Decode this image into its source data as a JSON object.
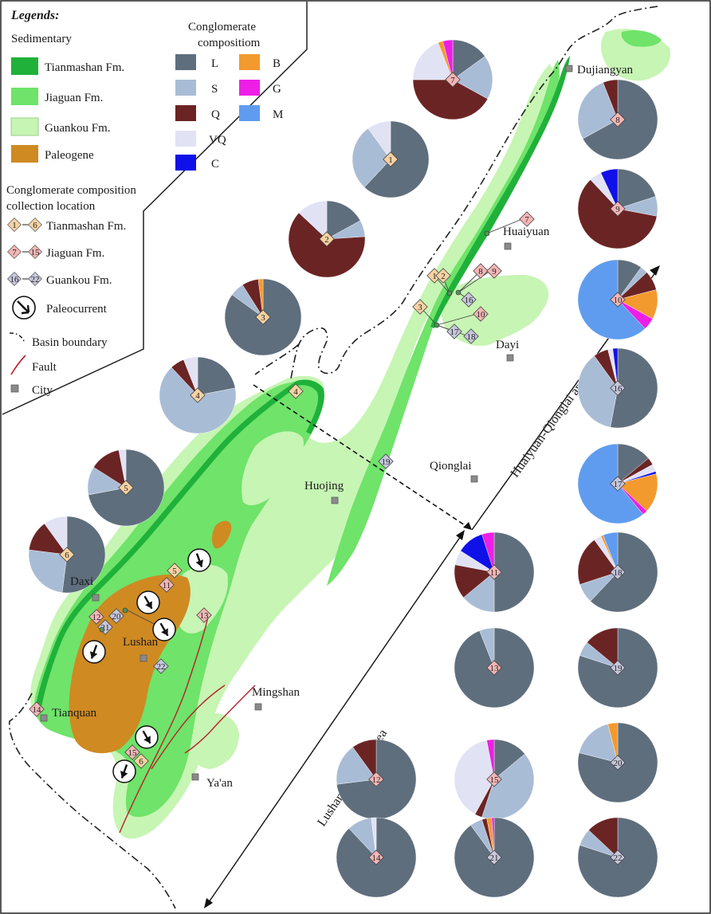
{
  "colors": {
    "tianmashan": "#1fb13a",
    "jiaguan": "#6fe36a",
    "guankou": "#c7f5b4",
    "paleogene": "#cf8a22",
    "L": "#5f6e7d",
    "S": "#a9bcd6",
    "Q": "#6b2424",
    "VQ": "#e2e2f5",
    "C": "#1010e8",
    "B": "#f39a2e",
    "G": "#ee1ee6",
    "M": "#5f9cf0",
    "diamond_tianmashan": "#f6d2a2",
    "diamond_jiaguan": "#f3b5b5",
    "diamond_guankou": "#c6c6dc",
    "fault": "#b8202a",
    "city": "#8a8a8a"
  },
  "legend": {
    "title": "Legends:",
    "sedimentary_title": "Sedimentary",
    "units": [
      {
        "key": "tianmashan",
        "label": "Tianmashan Fm."
      },
      {
        "key": "jiaguan",
        "label": "Jiaguan Fm."
      },
      {
        "key": "guankou",
        "label": "Guankou Fm."
      },
      {
        "key": "paleogene",
        "label": "Paleogene"
      }
    ],
    "composition_title": [
      "Conglomerate",
      "compositiom"
    ],
    "components": [
      {
        "key": "L",
        "label": "L"
      },
      {
        "key": "S",
        "label": "S"
      },
      {
        "key": "Q",
        "label": "Q"
      },
      {
        "key": "VQ",
        "label": "VQ"
      },
      {
        "key": "C",
        "label": "C"
      },
      {
        "key": "B",
        "label": "B"
      },
      {
        "key": "G",
        "label": "G"
      },
      {
        "key": "M",
        "label": "M"
      }
    ],
    "collection_title": [
      "Conglomerate composition",
      "collection location"
    ],
    "collection": [
      {
        "from": "1",
        "to": "6",
        "label": "Tianmashan Fm.",
        "fm": "tianmashan"
      },
      {
        "from": "7",
        "to": "15",
        "label": "Jiaguan Fm.",
        "fm": "jiaguan"
      },
      {
        "from": "16",
        "to": "22",
        "label": "Guankou Fm.",
        "fm": "guankou"
      }
    ],
    "paleocurrent": "Paleocurrent",
    "basin_boundary": "Basin boundary",
    "fault": "Fault",
    "city": "City"
  },
  "cities": [
    {
      "name": "Dujiangyan"
    },
    {
      "name": "Huaiyuan"
    },
    {
      "name": "Dayi"
    },
    {
      "name": "Qionglai"
    },
    {
      "name": "Huojing"
    },
    {
      "name": "Daxi"
    },
    {
      "name": "Lushan"
    },
    {
      "name": "Mingshan"
    },
    {
      "name": "Tianquan"
    },
    {
      "name": "Ya'an"
    }
  ],
  "areas": {
    "north": "Huaiyuan-Qionglai area",
    "south": "Lushan-Tianquan area"
  },
  "pies": [
    {
      "id": "1",
      "fm": "tianmashan",
      "comp": {
        "L": 62,
        "S": 28,
        "VQ": 10
      }
    },
    {
      "id": "2",
      "fm": "tianmashan",
      "comp": {
        "L": 17,
        "S": 7,
        "Q": 63,
        "VQ": 13
      }
    },
    {
      "id": "3",
      "fm": "tianmashan",
      "comp": {
        "B": 2,
        "L": 85,
        "S": 6,
        "Q": 7
      }
    },
    {
      "id": "4",
      "fm": "tianmashan",
      "comp": {
        "L": 22,
        "S": 66,
        "Q": 6,
        "VQ": 6
      }
    },
    {
      "id": "5",
      "fm": "tianmashan",
      "comp": {
        "L": 72,
        "S": 12,
        "Q": 13,
        "VQ": 3
      }
    },
    {
      "id": "6",
      "fm": "tianmashan",
      "comp": {
        "L": 52,
        "S": 25,
        "Q": 13,
        "VQ": 10
      }
    },
    {
      "id": "7",
      "fm": "jiaguan",
      "comp": {
        "L": 15,
        "S": 18,
        "Q": 42,
        "VQ": 19,
        "G": 4,
        "B": 2
      }
    },
    {
      "id": "8",
      "fm": "jiaguan",
      "comp": {
        "L": 67,
        "S": 27,
        "Q": 6
      }
    },
    {
      "id": "9",
      "fm": "jiaguan",
      "comp": {
        "L": 20,
        "S": 8,
        "Q": 60,
        "VQ": 5,
        "C": 7
      }
    },
    {
      "id": "10",
      "fm": "jiaguan",
      "comp": {
        "L": 10,
        "Q": 8,
        "B": 12,
        "G": 5,
        "M": 62,
        "S": 3
      }
    },
    {
      "id": "11",
      "fm": "jiaguan",
      "comp": {
        "L": 50,
        "S": 14,
        "Q": 14,
        "VQ": 6,
        "C": 11,
        "G": 5
      }
    },
    {
      "id": "12",
      "fm": "jiaguan",
      "comp": {
        "L": 73,
        "S": 17,
        "Q": 10
      }
    },
    {
      "id": "13",
      "fm": "jiaguan",
      "comp": {
        "L": 94,
        "S": 6
      }
    },
    {
      "id": "14",
      "fm": "jiaguan",
      "comp": {
        "L": 88,
        "S": 10,
        "VQ": 2
      }
    },
    {
      "id": "15",
      "fm": "jiaguan",
      "comp": {
        "L": 14,
        "S": 41,
        "Q": 3,
        "VQ": 39,
        "G": 3
      }
    },
    {
      "id": "16",
      "fm": "guankou",
      "comp": {
        "L": 53,
        "S": 37,
        "Q": 6,
        "C": 2,
        "VQ": 2
      }
    },
    {
      "id": "17",
      "fm": "guankou",
      "comp": {
        "L": 14,
        "Q": 3,
        "C": 1,
        "VQ": 3,
        "B": 16,
        "G": 2,
        "M": 61
      }
    },
    {
      "id": "18",
      "fm": "guankou",
      "comp": {
        "L": 62,
        "S": 8,
        "Q": 20,
        "VQ": 3,
        "B": 1,
        "M": 6
      }
    },
    {
      "id": "19",
      "fm": "guankou",
      "comp": {
        "L": 80,
        "S": 6,
        "Q": 14
      }
    },
    {
      "id": "20",
      "fm": "guankou",
      "comp": {
        "L": 79,
        "S": 17,
        "B": 4
      }
    },
    {
      "id": "21",
      "fm": "guankou",
      "comp": {
        "L": 90,
        "S": 5,
        "B": 2,
        "G": 1,
        "Q": 2
      }
    },
    {
      "id": "22",
      "fm": "guankou",
      "comp": {
        "L": 80,
        "S": 7,
        "Q": 13
      }
    }
  ],
  "sites": [
    {
      "id": "1",
      "fm": "tianmashan"
    },
    {
      "id": "2",
      "fm": "tianmashan"
    },
    {
      "id": "3",
      "fm": "tianmashan"
    },
    {
      "id": "4",
      "fm": "tianmashan"
    },
    {
      "id": "5",
      "fm": "tianmashan"
    },
    {
      "id": "6",
      "fm": "tianmashan"
    },
    {
      "id": "7",
      "fm": "jiaguan"
    },
    {
      "id": "8",
      "fm": "jiaguan"
    },
    {
      "id": "9",
      "fm": "jiaguan"
    },
    {
      "id": "10",
      "fm": "jiaguan"
    },
    {
      "id": "11",
      "fm": "jiaguan"
    },
    {
      "id": "12",
      "fm": "jiaguan"
    },
    {
      "id": "13",
      "fm": "jiaguan"
    },
    {
      "id": "14",
      "fm": "jiaguan"
    },
    {
      "id": "15",
      "fm": "jiaguan"
    },
    {
      "id": "16",
      "fm": "guankou"
    },
    {
      "id": "17",
      "fm": "guankou"
    },
    {
      "id": "18",
      "fm": "guankou"
    },
    {
      "id": "19",
      "fm": "guankou"
    },
    {
      "id": "20",
      "fm": "guankou"
    },
    {
      "id": "21",
      "fm": "guankou"
    },
    {
      "id": "22",
      "fm": "guankou"
    }
  ],
  "paleocurrents": [
    {
      "bearing": 160
    },
    {
      "bearing": 150
    },
    {
      "bearing": 150
    },
    {
      "bearing": 200
    },
    {
      "bearing": 150
    },
    {
      "bearing": 200
    }
  ]
}
